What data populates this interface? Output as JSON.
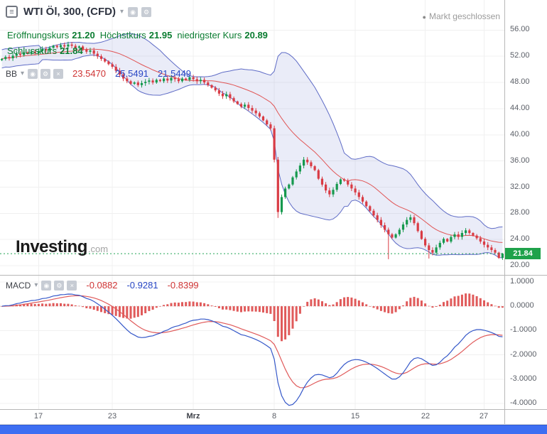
{
  "header": {
    "title": "WTI Öl, 300, (CFD)",
    "market_status": "Markt geschlossen",
    "ohlc": {
      "open_label": "Eröffnungskurs",
      "open": "21.20",
      "high_label": "Höchstkurs",
      "high": "21.95",
      "low_label": "niedrigster Kurs",
      "low": "20.89",
      "close_label": "Schlusskurs",
      "close": "21.84"
    }
  },
  "indicators": {
    "bb": {
      "name": "BB",
      "values": [
        "23.5470",
        "25.5491",
        "21.5449"
      ]
    },
    "macd": {
      "name": "MACD",
      "values": [
        "-0.0882",
        "-0.9281",
        "-0.8399"
      ]
    }
  },
  "watermark": {
    "brand": "Investing",
    "tld": ".com"
  },
  "price_label": "21.84",
  "icons": {
    "layout": "≡",
    "caret": "▾",
    "eye": "◉",
    "gear": "⚙",
    "close": "×",
    "status_dot": "●"
  },
  "chart_data": {
    "type": "candlestick",
    "title": "WTI Öl, 300, (CFD)",
    "interval_minutes": 300,
    "last_price": 21.84,
    "first_open": 51.4,
    "closes": [
      51.6,
      51.9,
      51.7,
      52.1,
      52.4,
      52.2,
      52.6,
      52.4,
      52.7,
      52.5,
      52.8,
      53.1,
      52.9,
      53.3,
      53.6,
      53.4,
      53.7,
      53.5,
      53.8,
      53.6,
      53.3,
      53.5,
      53.0,
      52.7,
      52.9,
      52.4,
      52.0,
      51.6,
      51.2,
      50.8,
      50.4,
      49.8,
      49.2,
      48.6,
      48.2,
      47.8,
      48.0,
      47.6,
      47.9,
      48.1,
      48.3,
      48.0,
      48.4,
      48.2,
      48.6,
      48.3,
      48.7,
      48.5,
      48.2,
      48.6,
      48.4,
      48.8,
      48.5,
      48.2,
      48.4,
      48.0,
      47.6,
      47.2,
      46.8,
      46.3,
      45.9,
      46.2,
      45.6,
      45.1,
      44.7,
      44.3,
      44.6,
      44.1,
      43.7,
      43.3,
      42.8,
      42.2,
      41.6,
      41.0,
      36.2,
      28.2,
      30.5,
      31.8,
      32.4,
      33.5,
      34.4,
      35.3,
      36.2,
      35.8,
      35.2,
      34.6,
      33.3,
      32.4,
      31.5,
      30.9,
      31.6,
      32.5,
      33.2,
      33.0,
      32.4,
      31.8,
      31.2,
      30.5,
      29.8,
      29.1,
      28.4,
      27.7,
      27.0,
      26.2,
      25.5,
      24.8,
      24.3,
      24.8,
      25.5,
      26.3,
      27.0,
      27.4,
      26.5,
      25.3,
      24.1,
      23.1,
      22.4,
      22.0,
      22.8,
      23.5,
      24.1,
      23.7,
      24.4,
      24.8,
      24.4,
      25.0,
      25.4,
      25.0,
      24.6,
      24.2,
      23.7,
      23.2,
      22.8,
      22.4,
      22.0,
      21.2,
      21.84
    ],
    "overrides": {
      "75": {
        "l": 27.3
      },
      "105": {
        "l": 21.0
      },
      "116": {
        "l": 21.1
      },
      "136": {
        "o": 21.2,
        "h": 21.95,
        "l": 20.89,
        "c": 21.84
      }
    },
    "price_axis": {
      "domain": [
        18.6,
        60.6
      ],
      "labels": [
        {
          "text": "56.00",
          "value": 56
        },
        {
          "text": "52.00",
          "value": 52
        },
        {
          "text": "48.00",
          "value": 48
        },
        {
          "text": "44.00",
          "value": 44
        },
        {
          "text": "40.00",
          "value": 40
        },
        {
          "text": "36.00",
          "value": 36
        },
        {
          "text": "32.00",
          "value": 32
        },
        {
          "text": "28.00",
          "value": 28
        },
        {
          "text": "24.00",
          "value": 24
        },
        {
          "text": "20.00",
          "value": 20
        }
      ]
    },
    "ticks": [
      {
        "label": "17",
        "i": 10
      },
      {
        "label": "23",
        "i": 30
      },
      {
        "label": "Mrz",
        "i": 52,
        "month": true
      },
      {
        "label": "8",
        "i": 74
      },
      {
        "label": "15",
        "i": 96
      },
      {
        "label": "22",
        "i": 115
      },
      {
        "label": "27",
        "i": 131
      }
    ],
    "bb": {
      "period": 20,
      "mult": 2,
      "legend": [
        "23.5470",
        "25.5491",
        "21.5449"
      ]
    },
    "macd": {
      "fast": 12,
      "slow": 26,
      "signal": 9,
      "legend": [
        "-0.0882",
        "-0.9281",
        "-0.8399"
      ],
      "domain_top": 1.26,
      "domain_bottom": -4.23,
      "axis": [
        {
          "text": "1.0000",
          "value": 1
        },
        {
          "text": "0.0000",
          "value": 0
        },
        {
          "text": "-1.0000",
          "value": -1
        },
        {
          "text": "-2.0000",
          "value": -2
        },
        {
          "text": "-3.0000",
          "value": -3
        },
        {
          "text": "-4.0000",
          "value": -4
        }
      ]
    },
    "colors": {
      "up": "#16994e",
      "down": "#d93b44",
      "bb_fill": "rgba(95,108,198,0.13)",
      "bb_line": "#5f6cc6",
      "bb_mid": "#e05555",
      "macd_line": "#3558c9",
      "signal_line": "#e05a5a",
      "hist": "#e05a5a",
      "price_line": "#22a355",
      "price_badge": "#1fa24b",
      "grid": "#f0f0f0",
      "axis_text": "#5a5e66",
      "scrollbar": "#3d6ef2",
      "ohlc_text": "#0a7c30"
    }
  }
}
